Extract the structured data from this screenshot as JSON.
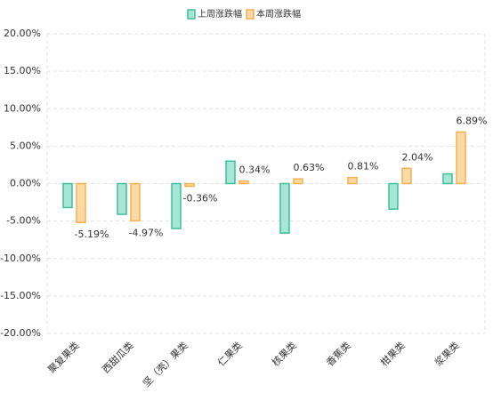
{
  "chart_data": {
    "type": "bar",
    "categories": [
      "聚复果类",
      "西甜瓜类",
      "坚（壳）果类",
      "仁果类",
      "核果类",
      "香蕉类",
      "柑果类",
      "浆果类"
    ],
    "series": [
      {
        "name": "上周涨跌幅",
        "color": "#3dbf9c",
        "fill": "#a8e6d6",
        "values": [
          -3.2,
          -4.1,
          -6.0,
          3.0,
          -6.6,
          null,
          -3.4,
          1.3
        ]
      },
      {
        "name": "本周涨跌幅",
        "color": "#f5b050",
        "fill": "#fdd9a6",
        "values": [
          -5.19,
          -4.97,
          -0.36,
          0.34,
          0.63,
          0.81,
          2.04,
          6.89
        ],
        "value_labels": [
          "-5.19%",
          "-4.97%",
          "-0.36%",
          "0.34%",
          "0.63%",
          "0.81%",
          "2.04%",
          "6.89%"
        ]
      }
    ],
    "ylim": [
      -20,
      20
    ],
    "yticks": [
      {
        "value": -20,
        "label": "-20.00%"
      },
      {
        "value": -15,
        "label": "-15.00%"
      },
      {
        "value": -10,
        "label": "-10.00%"
      },
      {
        "value": -5,
        "label": "-5.00%"
      },
      {
        "value": 0,
        "label": "0.00%"
      },
      {
        "value": 5,
        "label": "5.00%"
      },
      {
        "value": 10,
        "label": "10.00%"
      },
      {
        "value": 15,
        "label": "15.00%"
      },
      {
        "value": 20,
        "label": "20.00%"
      }
    ],
    "grid": true,
    "legend": "top"
  }
}
